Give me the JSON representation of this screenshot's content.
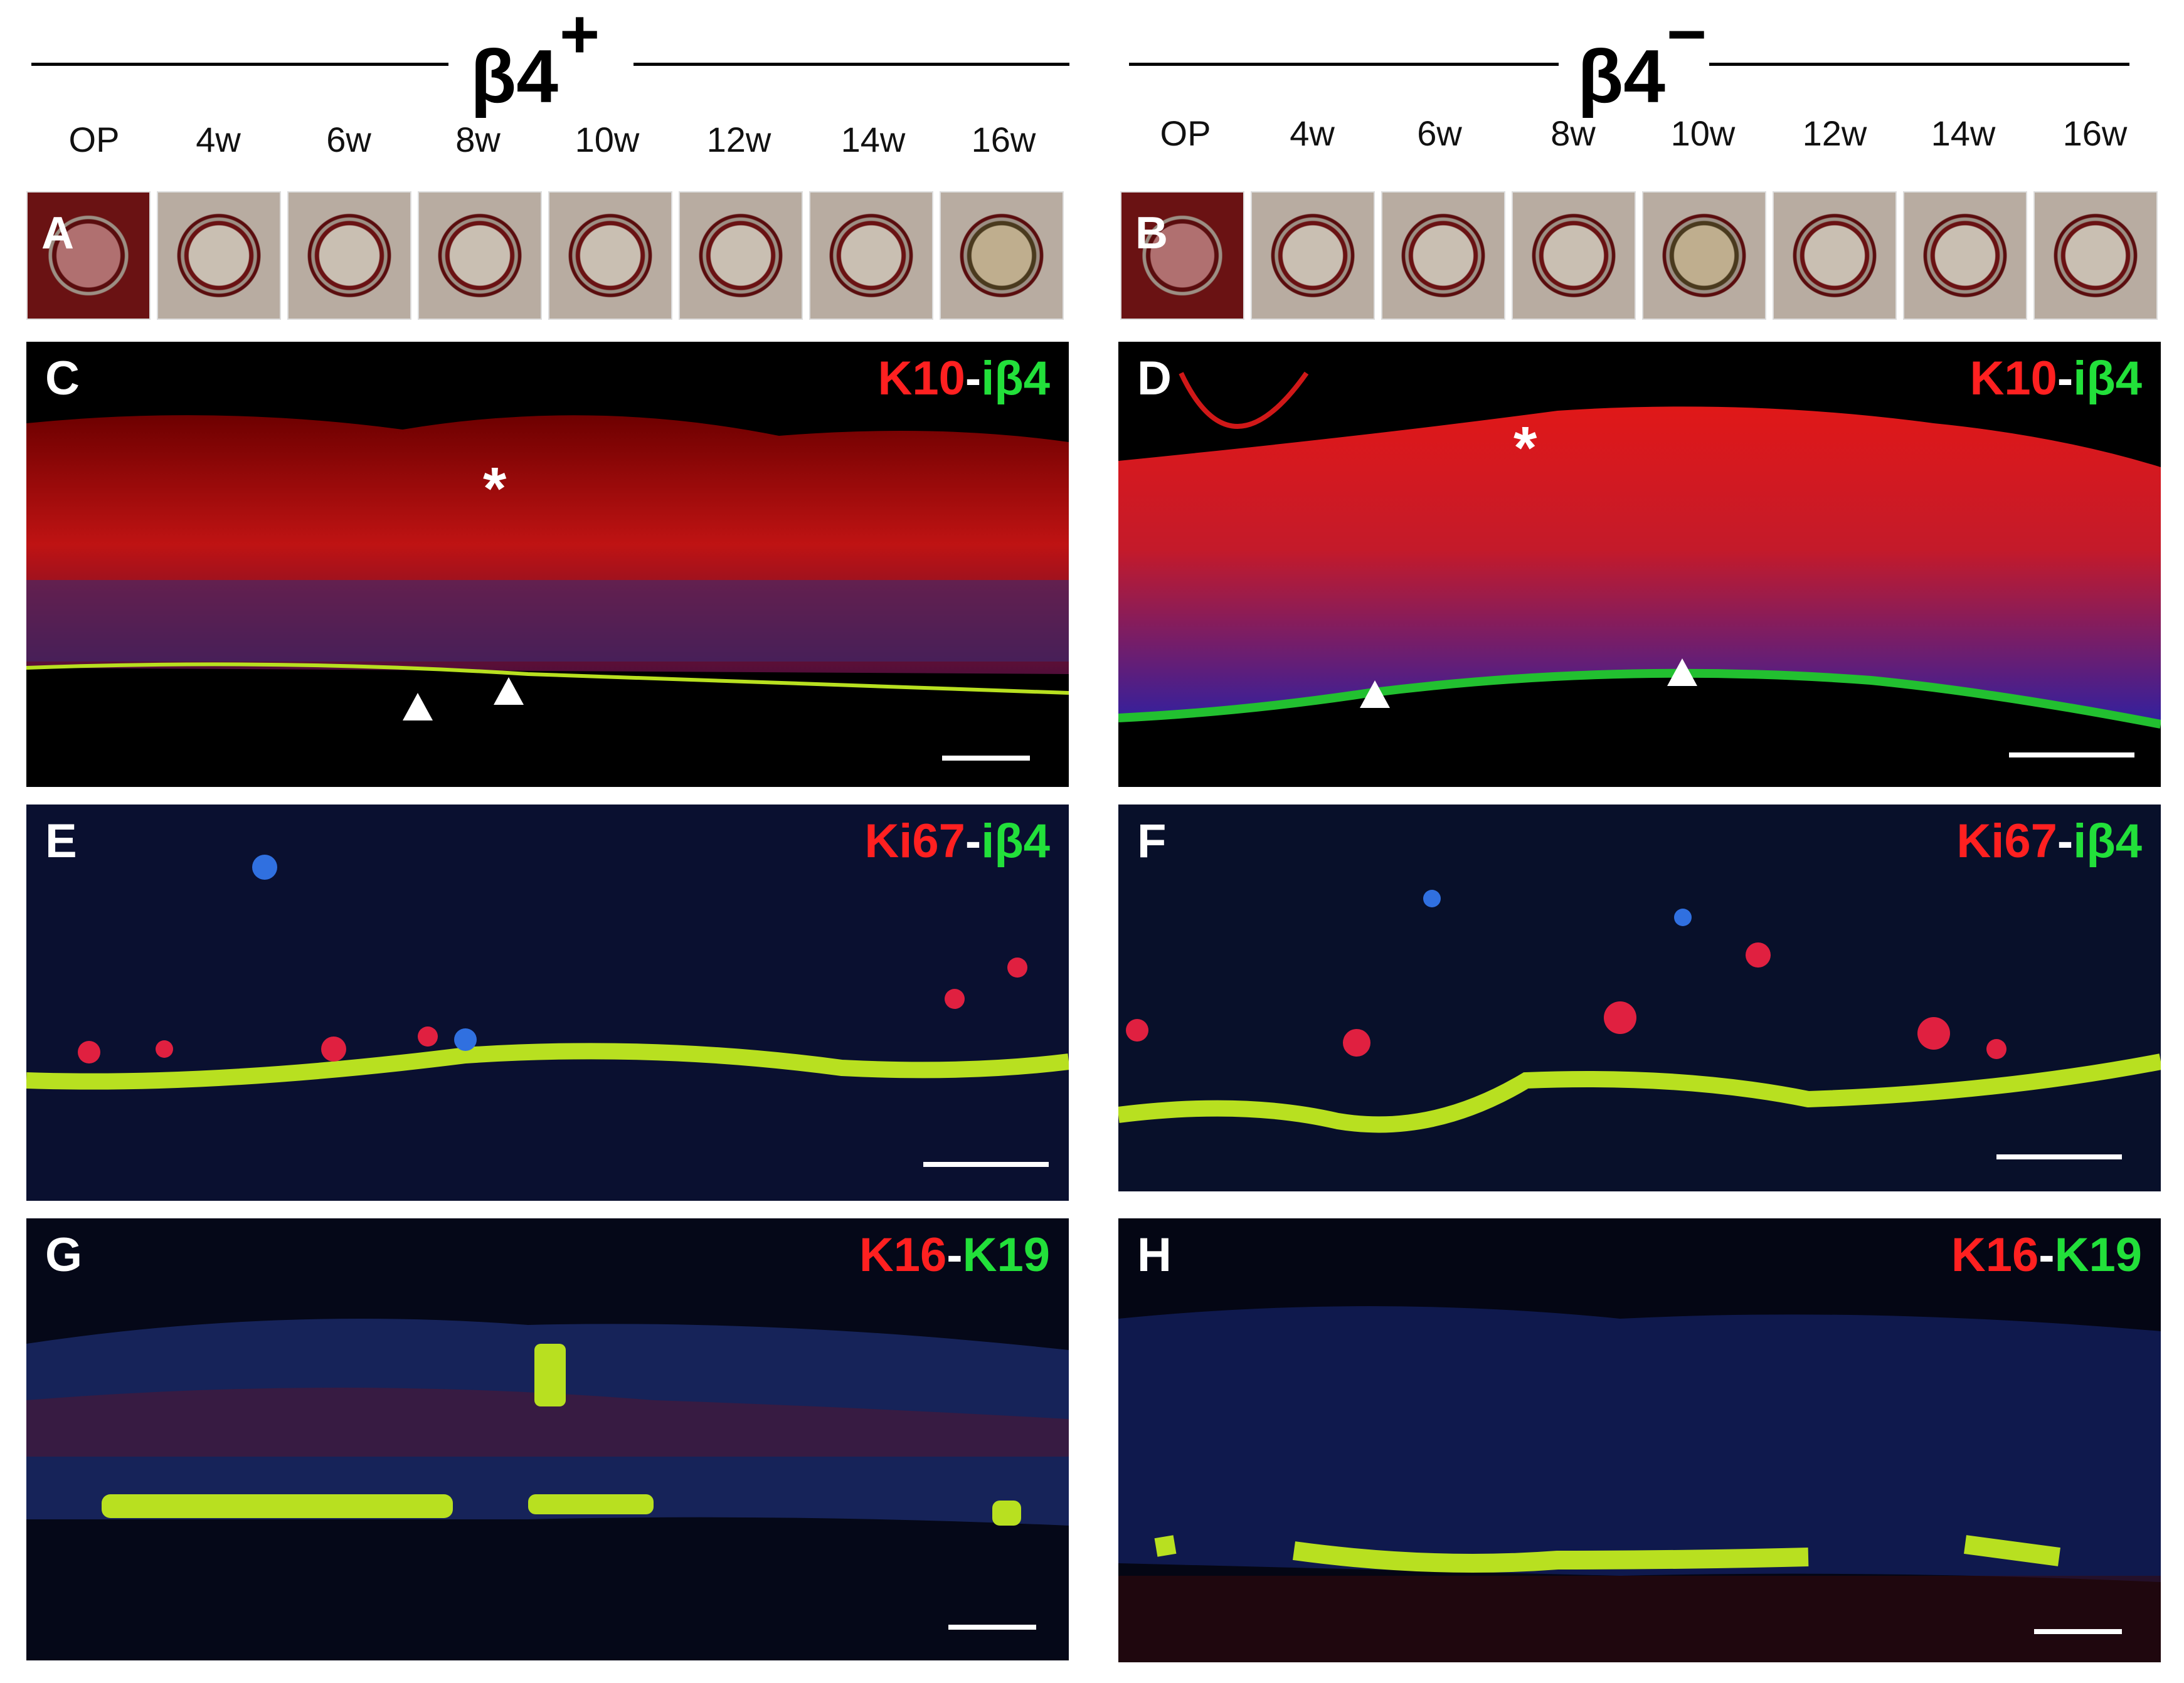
{
  "groups": [
    {
      "title_base": "β4",
      "title_sign": "+",
      "thumb_letter": "A"
    },
    {
      "title_base": "β4",
      "title_sign": "−",
      "thumb_letter": "B"
    }
  ],
  "timepoints": [
    "OP",
    "4w",
    "6w",
    "8w",
    "10w",
    "12w",
    "14w",
    "16w"
  ],
  "panels": {
    "C": {
      "letter": "C",
      "stain_red": "K10",
      "sep": "-",
      "stain_green": "iβ4",
      "asterisk": "*"
    },
    "D": {
      "letter": "D",
      "stain_red": "K10",
      "sep": "-",
      "stain_green": "iβ4",
      "asterisk": "*"
    },
    "E": {
      "letter": "E",
      "stain_red": "Ki67",
      "sep": "-",
      "stain_green": "iβ4"
    },
    "F": {
      "letter": "F",
      "stain_red": "Ki67",
      "sep": "-",
      "stain_green": "iβ4"
    },
    "G": {
      "letter": "G",
      "stain_red": "K16",
      "sep": "-",
      "stain_green": "K19"
    },
    "H": {
      "letter": "H",
      "stain_red": "K16",
      "sep": "-",
      "stain_green": "K19"
    }
  }
}
